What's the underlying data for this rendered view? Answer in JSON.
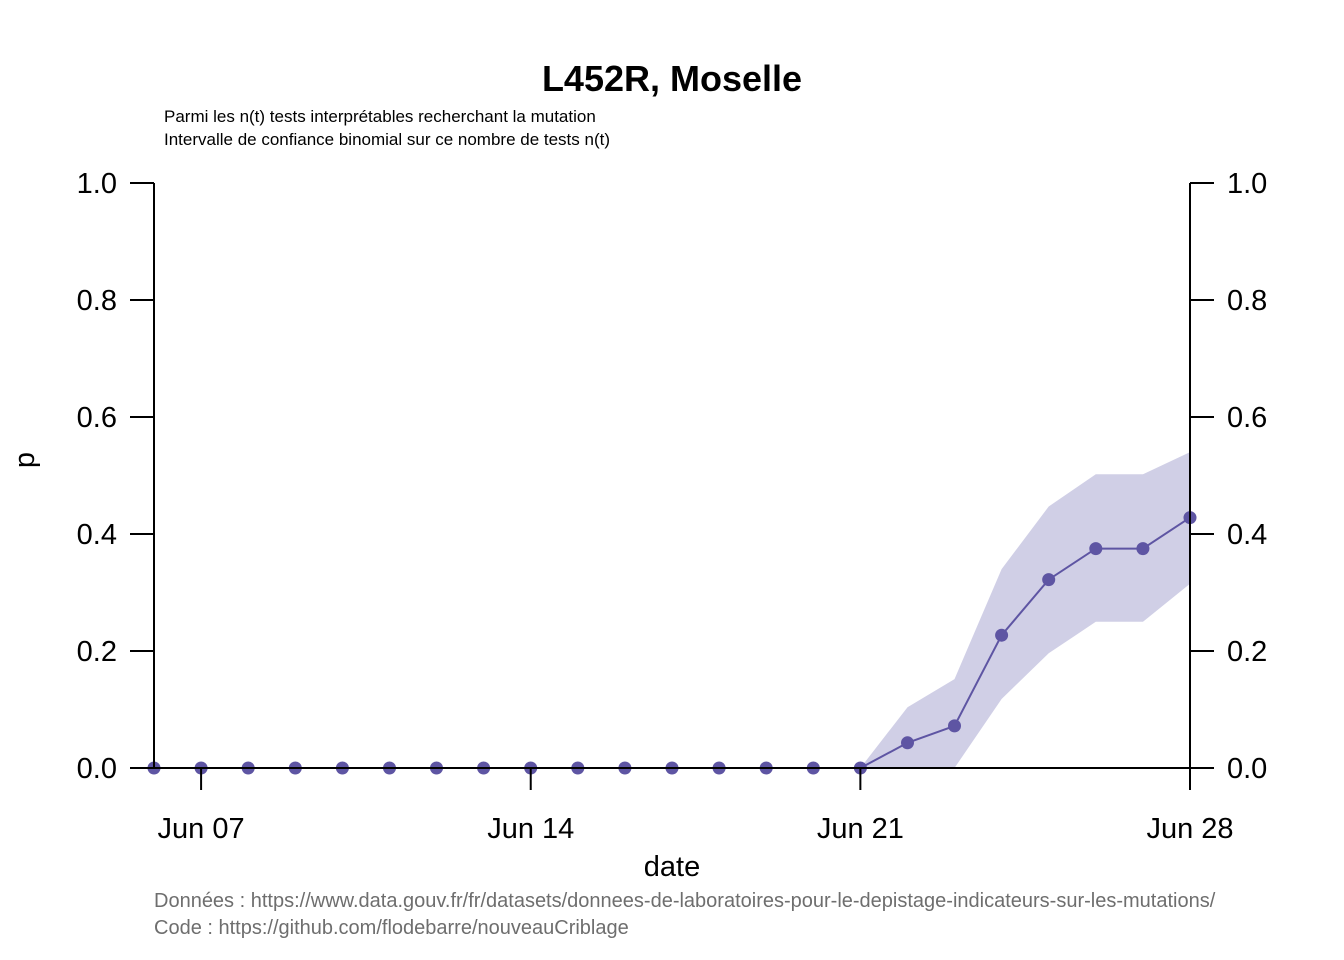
{
  "chart_data": {
    "type": "line",
    "title": "L452R, Moselle",
    "subtitle_lines": [
      "Parmi les n(t) tests interprétables recherchant la mutation",
      "Intervalle de confiance binomial sur ce nombre de tests n(t)"
    ],
    "xlabel": "date",
    "ylabel": "p",
    "xlim": [
      "2021-06-06",
      "2021-06-28"
    ],
    "ylim": [
      0,
      1
    ],
    "x_ticks": [
      {
        "date": "2021-06-07",
        "label": "Jun 07"
      },
      {
        "date": "2021-06-14",
        "label": "Jun 14"
      },
      {
        "date": "2021-06-21",
        "label": "Jun 21"
      },
      {
        "date": "2021-06-28",
        "label": "Jun 28"
      }
    ],
    "y_ticks": [
      "0.0",
      "0.2",
      "0.4",
      "0.6",
      "0.8",
      "1.0"
    ],
    "y_tick_values": [
      0,
      0.2,
      0.4,
      0.6,
      0.8,
      1.0
    ],
    "right_axis": true,
    "grid": false,
    "series": [
      {
        "color": "#5e55a3",
        "band_color": "#d0cfe6",
        "x": [
          "2021-06-06",
          "2021-06-07",
          "2021-06-08",
          "2021-06-09",
          "2021-06-10",
          "2021-06-11",
          "2021-06-12",
          "2021-06-13",
          "2021-06-14",
          "2021-06-15",
          "2021-06-16",
          "2021-06-17",
          "2021-06-18",
          "2021-06-19",
          "2021-06-20",
          "2021-06-21",
          "2021-06-22",
          "2021-06-23",
          "2021-06-24",
          "2021-06-25",
          "2021-06-26",
          "2021-06-27",
          "2021-06-28"
        ],
        "y": [
          0,
          0,
          0,
          0,
          0,
          0,
          0,
          0,
          0,
          0,
          0,
          0,
          0,
          0,
          0,
          0,
          0.043,
          0.072,
          0.227,
          0.322,
          0.375,
          0.375,
          0.428
        ],
        "lower": [
          0,
          0,
          0,
          0,
          0,
          0,
          0,
          0,
          0,
          0,
          0,
          0,
          0,
          0,
          0,
          0,
          0,
          0,
          0.118,
          0.196,
          0.25,
          0.25,
          0.315
        ],
        "upper": [
          0,
          0,
          0,
          0,
          0,
          0,
          0,
          0,
          0,
          0,
          0,
          0,
          0,
          0,
          0,
          0,
          0.104,
          0.152,
          0.34,
          0.447,
          0.502,
          0.502,
          0.54
        ]
      }
    ],
    "caption_lines": [
      "Données : https://www.data.gouv.fr/fr/datasets/donnees-de-laboratoires-pour-le-depistage-indicateurs-sur-les-mutations/",
      "Code : https://github.com/flodebarre/nouveauCriblage"
    ]
  }
}
